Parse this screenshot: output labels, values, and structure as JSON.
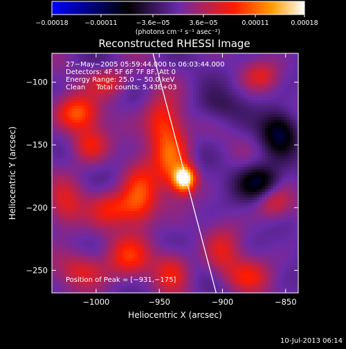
{
  "chart_data": {
    "type": "heatmap",
    "title": "Reconstructed RHESSI Image",
    "xlabel": "Heliocentric X (arcsec)",
    "ylabel": "Heliocentric Y (arcsec)",
    "xlim": [
      -1035,
      -840
    ],
    "ylim": [
      -268,
      -77
    ],
    "x_ticks": [
      {
        "value": -1000,
        "label": "−1000"
      },
      {
        "value": -950,
        "label": "−950"
      },
      {
        "value": -900,
        "label": "−900"
      },
      {
        "value": -850,
        "label": "−850"
      }
    ],
    "y_ticks": [
      {
        "value": -100,
        "label": "−100"
      },
      {
        "value": -150,
        "label": "−150"
      },
      {
        "value": -200,
        "label": "−200"
      },
      {
        "value": -250,
        "label": "−250"
      }
    ],
    "colorbar": {
      "ticks": [
        {
          "value": -0.00018,
          "label": "−0.00018"
        },
        {
          "value": -0.00011,
          "label": "−0.00011"
        },
        {
          "value": -3.6e-05,
          "label": "−3.6e−05"
        },
        {
          "value": 3.6e-05,
          "label": "3.6e−05"
        },
        {
          "value": 0.00011,
          "label": "0.00011"
        },
        {
          "value": 0.00018,
          "label": "0.00018"
        }
      ],
      "range": [
        -0.00018,
        0.00018
      ],
      "units_label": "(photons cm⁻² s⁻¹ asec⁻²)",
      "colors": [
        "#0000ff",
        "#000000",
        "#6a2aa8",
        "#ff1a00",
        "#ff9b00",
        "#ffffff"
      ]
    },
    "annotations": [
      "27−May−2005 05:59:44.000 to 06:03:44.000",
      "Detectors: 4F 5F 6F 7F 8F, Att 0",
      "Energy Range: 25.0 − 50.0 keV",
      "Clean     Total counts: 5.43E+03"
    ],
    "peak_label": "Position of Peak = [−931,−175]",
    "peak": {
      "x": -931,
      "y": -175
    },
    "limb_line": [
      {
        "x": -955,
        "y": -77
      },
      {
        "x": -905,
        "y": -268
      }
    ],
    "emission_sources": [
      {
        "x": -930,
        "y": -177,
        "sx": 6,
        "sy": 7,
        "amp": 1.0
      },
      {
        "x": -940,
        "y": -160,
        "sx": 10,
        "sy": 18,
        "amp": 0.55
      },
      {
        "x": -948,
        "y": -130,
        "sx": 10,
        "sy": 14,
        "amp": 0.45
      },
      {
        "x": -1015,
        "y": -125,
        "sx": 12,
        "sy": 10,
        "amp": 0.55
      },
      {
        "x": -1005,
        "y": -150,
        "sx": 10,
        "sy": 10,
        "amp": 0.4
      },
      {
        "x": -965,
        "y": -190,
        "sx": 10,
        "sy": 18,
        "amp": 0.5
      },
      {
        "x": -985,
        "y": -200,
        "sx": 14,
        "sy": 10,
        "amp": 0.4
      },
      {
        "x": -1025,
        "y": -200,
        "sx": 10,
        "sy": 14,
        "amp": 0.35
      },
      {
        "x": -1010,
        "y": -250,
        "sx": 14,
        "sy": 10,
        "amp": 0.35
      },
      {
        "x": -975,
        "y": -240,
        "sx": 12,
        "sy": 12,
        "amp": 0.4
      },
      {
        "x": -940,
        "y": -250,
        "sx": 10,
        "sy": 12,
        "amp": 0.35
      },
      {
        "x": -900,
        "y": -235,
        "sx": 10,
        "sy": 14,
        "amp": 0.3
      },
      {
        "x": -880,
        "y": -255,
        "sx": 12,
        "sy": 10,
        "amp": 0.35
      },
      {
        "x": -870,
        "y": -95,
        "sx": 10,
        "sy": 8,
        "amp": 0.3
      },
      {
        "x": -860,
        "y": -195,
        "sx": 10,
        "sy": 10,
        "amp": 0.35
      },
      {
        "x": -990,
        "y": -100,
        "sx": 12,
        "sy": 8,
        "amp": 0.35
      },
      {
        "x": -870,
        "y": -180,
        "sx": 12,
        "sy": 10,
        "amp": -0.55
      },
      {
        "x": -855,
        "y": -140,
        "sx": 10,
        "sy": 12,
        "amp": -0.5
      },
      {
        "x": -905,
        "y": -120,
        "sx": 14,
        "sy": 10,
        "amp": -0.2
      }
    ],
    "grid": false
  },
  "footer": {
    "timestamp": "10-Jul-2013 06:14"
  }
}
